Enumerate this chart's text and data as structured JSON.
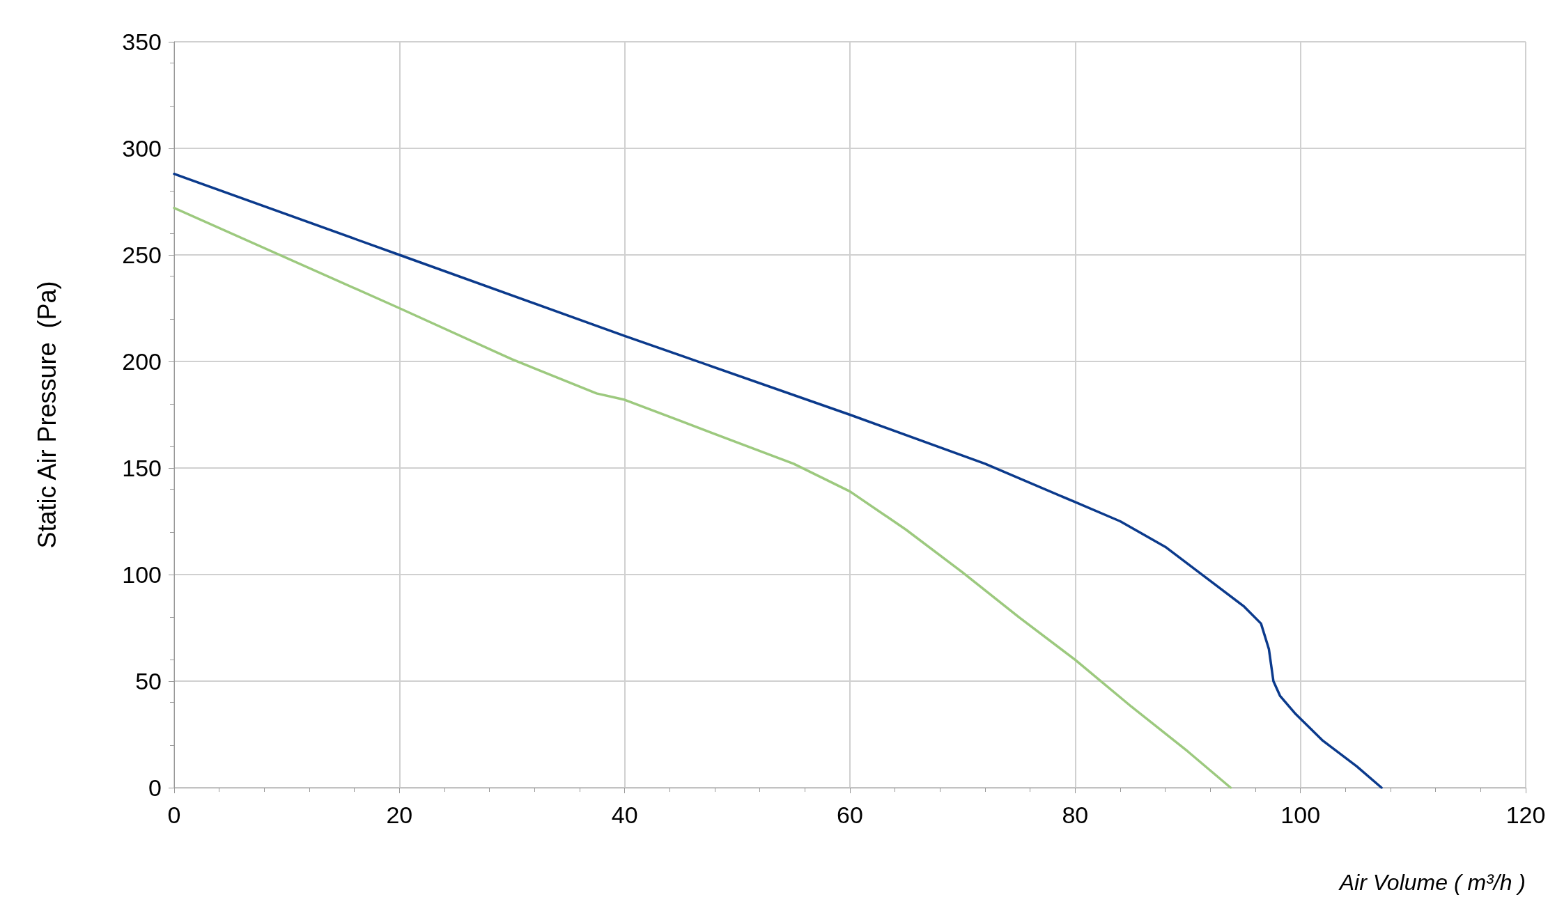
{
  "chart_data": {
    "type": "line",
    "xlabel": "Air Volume ( m³/h )",
    "ylabel": "Static Air Pressure  (Pa)",
    "xlim": [
      0,
      120
    ],
    "xticks": [
      0,
      20,
      40,
      60,
      80,
      100,
      120
    ],
    "ylim": [
      0,
      350
    ],
    "yticks": [
      0,
      50,
      100,
      150,
      200,
      250,
      300,
      350
    ],
    "grid": true,
    "marker": "none",
    "line_style": "solid",
    "series": [
      {
        "color": "#0b3a8c",
        "x": [
          0,
          20,
          40,
          60,
          72,
          80,
          84,
          88,
          92,
          95,
          96.5,
          97.2,
          97.6,
          98.2,
          99.5,
          102,
          105,
          107.2
        ],
        "values": [
          288,
          250,
          212,
          175,
          152,
          134,
          125,
          113,
          97,
          85,
          77,
          65,
          50,
          43,
          35,
          22,
          10,
          0
        ]
      },
      {
        "color": "#9cc97e",
        "x": [
          0,
          20,
          30,
          37.5,
          40,
          45,
          50,
          55,
          60,
          65,
          70,
          75,
          80,
          85,
          90,
          93.8
        ],
        "values": [
          272,
          225,
          201,
          185,
          182,
          172,
          162,
          152,
          139,
          121,
          101,
          80,
          60,
          38,
          17,
          0
        ]
      }
    ]
  }
}
